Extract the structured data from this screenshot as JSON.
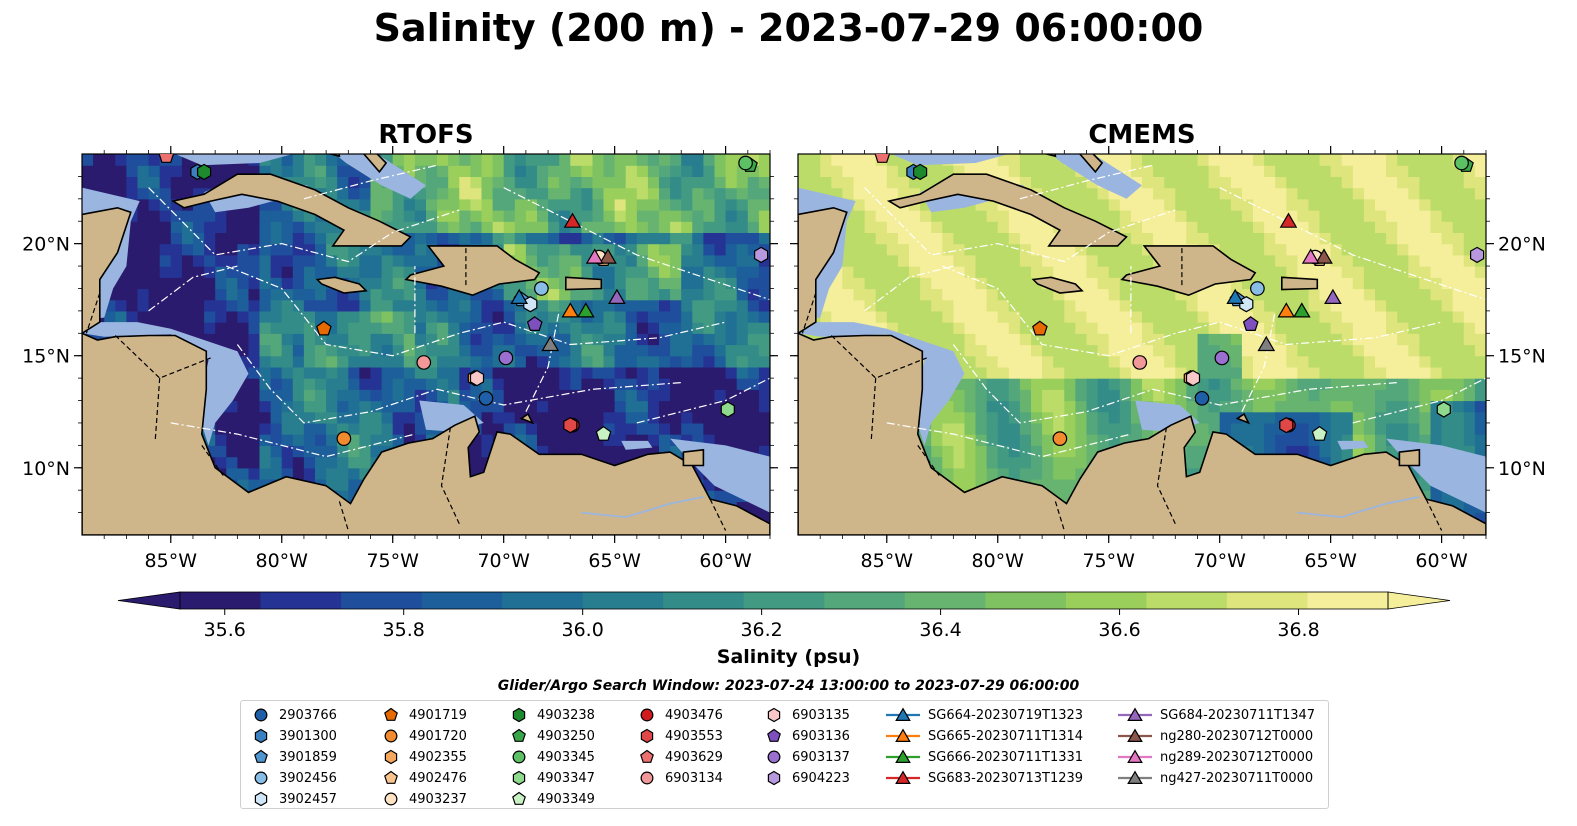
{
  "title": "Salinity (200 m) - 2023-07-29 06:00:00",
  "panels": [
    {
      "title": "RTOFS",
      "style": "rtofs"
    },
    {
      "title": "CMEMS",
      "style": "cmems"
    }
  ],
  "axes": {
    "lon_ticks": [
      "85°W",
      "80°W",
      "75°W",
      "70°W",
      "65°W",
      "60°W"
    ],
    "lat_ticks": [
      "20°N",
      "15°N",
      "10°N"
    ],
    "lon_range": [
      -89,
      -58
    ],
    "lat_range": [
      7,
      24
    ]
  },
  "colorbar": {
    "label": "Salinity (psu)",
    "ticks": [
      "35.6",
      "35.8",
      "36.0",
      "36.2",
      "36.4",
      "36.6",
      "36.8"
    ],
    "min": 35.55,
    "max": 36.9,
    "colors": [
      "#2a1b6e",
      "#253494",
      "#1f4e9c",
      "#1c5f9a",
      "#206f95",
      "#287e8e",
      "#348c88",
      "#429a82",
      "#54a77a",
      "#66b46f",
      "#7ec262",
      "#9bcf5c",
      "#bcdc69",
      "#dde57c",
      "#f5ee9b"
    ]
  },
  "subtitle": "Glider/Argo Search Window: 2023-07-24 13:00:00 to 2023-07-29 06:00:00",
  "legend": {
    "entries": [
      {
        "label": "2903766",
        "shape": "circle",
        "color": "#1f5fa8"
      },
      {
        "label": "3901300",
        "shape": "hexagon",
        "color": "#3a7fc0"
      },
      {
        "label": "3901859",
        "shape": "pentagon",
        "color": "#4f95d0"
      },
      {
        "label": "3902456",
        "shape": "circle",
        "color": "#88bde6"
      },
      {
        "label": "3902457",
        "shape": "hexagon",
        "color": "#d0e6f7"
      },
      {
        "label": "4901719",
        "shape": "pentagon",
        "color": "#e66a00"
      },
      {
        "label": "4901720",
        "shape": "circle",
        "color": "#f28a30"
      },
      {
        "label": "4902355",
        "shape": "hexagon",
        "color": "#f6a75e"
      },
      {
        "label": "4902476",
        "shape": "pentagon",
        "color": "#f9c48e"
      },
      {
        "label": "4903237",
        "shape": "circle",
        "color": "#fde3c4"
      },
      {
        "label": "4903238",
        "shape": "hexagon",
        "color": "#1e8a2e"
      },
      {
        "label": "4903250",
        "shape": "pentagon",
        "color": "#3aa64a"
      },
      {
        "label": "4903345",
        "shape": "circle",
        "color": "#5cc064"
      },
      {
        "label": "4903347",
        "shape": "hexagon",
        "color": "#8ed98e"
      },
      {
        "label": "4903349",
        "shape": "pentagon",
        "color": "#c8f2c4"
      },
      {
        "label": "4903476",
        "shape": "circle",
        "color": "#d01c1c"
      },
      {
        "label": "4903553",
        "shape": "hexagon",
        "color": "#e04848"
      },
      {
        "label": "4903629",
        "shape": "pentagon",
        "color": "#ec7070"
      },
      {
        "label": "6903134",
        "shape": "circle",
        "color": "#f29898"
      },
      {
        "label": "6903135",
        "shape": "hexagon",
        "color": "#f8c8c8"
      },
      {
        "label": "6903136",
        "shape": "pentagon",
        "color": "#7d4fbf"
      },
      {
        "label": "6903137",
        "shape": "circle",
        "color": "#9a6fd0"
      },
      {
        "label": "6904223",
        "shape": "hexagon",
        "color": "#b899e0"
      },
      {
        "label": "SG664-20230719T1323",
        "shape": "triangle-line",
        "color": "#1f77b4"
      },
      {
        "label": "SG665-20230711T1314",
        "shape": "triangle-line",
        "color": "#ff7f0e"
      },
      {
        "label": "SG666-20230711T1331",
        "shape": "triangle-line",
        "color": "#2ca02c"
      },
      {
        "label": "SG683-20230713T1239",
        "shape": "triangle-line",
        "color": "#d62728"
      },
      {
        "label": "SG684-20230711T1347",
        "shape": "triangle-line",
        "color": "#9467bd"
      },
      {
        "label": "ng280-20230712T0000",
        "shape": "triangle-line",
        "color": "#8c564b"
      },
      {
        "label": "ng289-20230712T0000",
        "shape": "triangle-line",
        "color": "#e377c2"
      },
      {
        "label": "ng427-20230711T0000",
        "shape": "triangle-line",
        "color": "#7f7f7f"
      }
    ]
  },
  "markers": [
    {
      "label": "2903766",
      "lon": -70.8,
      "lat": 13.1
    },
    {
      "label": "3901300",
      "lon": -83.8,
      "lat": 23.2
    },
    {
      "label": "3901859",
      "lon": -69.2,
      "lat": 17.5
    },
    {
      "label": "3902456",
      "lon": -68.3,
      "lat": 18.0
    },
    {
      "label": "3902457",
      "lon": -68.8,
      "lat": 17.3
    },
    {
      "label": "4901719",
      "lon": -78.1,
      "lat": 16.2
    },
    {
      "label": "4901720",
      "lon": -77.2,
      "lat": 11.3
    },
    {
      "label": "4902355",
      "lon": -71.3,
      "lat": 14.0
    },
    {
      "label": "4902476",
      "lon": -65.5,
      "lat": 19.3
    },
    {
      "label": "4903237",
      "lon": -65.7,
      "lat": 19.4
    },
    {
      "label": "4903238",
      "lon": -83.5,
      "lat": 23.2
    },
    {
      "label": "4903250",
      "lon": -58.9,
      "lat": 23.5
    },
    {
      "label": "4903345",
      "lon": -59.1,
      "lat": 23.6
    },
    {
      "label": "4903347",
      "lon": -59.9,
      "lat": 12.6
    },
    {
      "label": "4903349",
      "lon": -65.5,
      "lat": 11.5
    },
    {
      "label": "4903476",
      "lon": -66.9,
      "lat": 11.9
    },
    {
      "label": "4903553",
      "lon": -67.0,
      "lat": 11.9
    },
    {
      "label": "4903629",
      "lon": -85.2,
      "lat": 23.9
    },
    {
      "label": "6903134",
      "lon": -73.6,
      "lat": 14.7
    },
    {
      "label": "6903135",
      "lon": -71.2,
      "lat": 14.0
    },
    {
      "label": "6903136",
      "lon": -68.6,
      "lat": 16.4
    },
    {
      "label": "6903137",
      "lon": -69.9,
      "lat": 14.9
    },
    {
      "label": "6904223",
      "lon": -58.4,
      "lat": 19.5
    },
    {
      "label": "SG664-20230719T1323",
      "lon": -69.3,
      "lat": 17.6
    },
    {
      "label": "SG665-20230711T1314",
      "lon": -67.0,
      "lat": 17.0
    },
    {
      "label": "SG666-20230711T1331",
      "lon": -66.3,
      "lat": 17.0
    },
    {
      "label": "SG683-20230713T1239",
      "lon": -66.9,
      "lat": 21.0
    },
    {
      "label": "SG684-20230711T1347",
      "lon": -64.9,
      "lat": 17.6
    },
    {
      "label": "ng280-20230712T0000",
      "lon": -65.3,
      "lat": 19.4
    },
    {
      "label": "ng289-20230712T0000",
      "lon": -65.9,
      "lat": 19.4
    },
    {
      "label": "ng427-20230711T0000",
      "lon": -67.9,
      "lat": 15.5
    }
  ]
}
